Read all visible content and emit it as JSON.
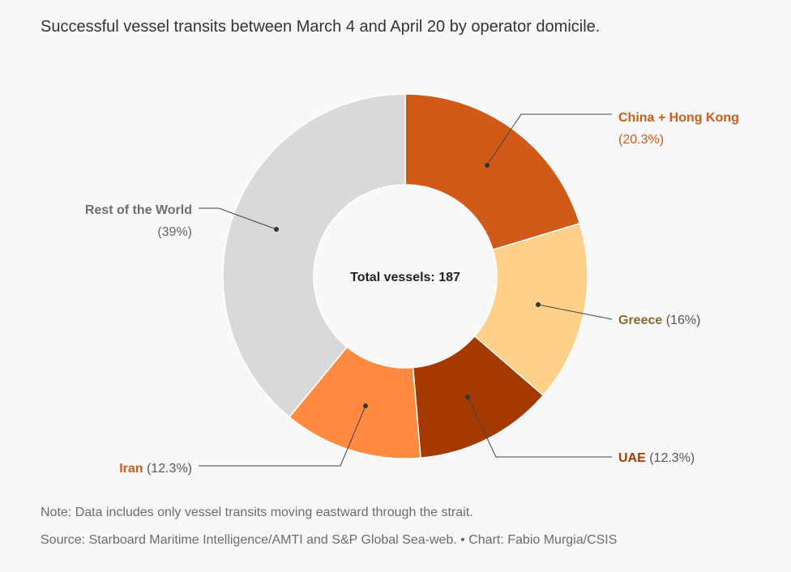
{
  "title": "Successful vessel transits between March 4 and April 20 by operator domicile.",
  "center_label": "Total vessels: 187",
  "notes": {
    "note": "Note: Data includes only vessel transits moving eastward through the strait.",
    "source": "Source: Starboard Maritime Intelligence/AMTI and S&P Global Sea-web. • Chart: Fabio Murgia/CSIS"
  },
  "chart_data": {
    "type": "pie",
    "donut": true,
    "title": "Successful vessel transits between March 4 and April 20 by operator domicile.",
    "total": 187,
    "slices": [
      {
        "name": "China + Hong Kong",
        "label": "(20.3%)",
        "percent": 20.3,
        "color": "#d05a18",
        "label_color": "#d05a18"
      },
      {
        "name": "Greece",
        "label": "(16%)",
        "percent": 16.0,
        "color": "#ffd08a",
        "label_color": "#8a6a2a"
      },
      {
        "name": "UAE",
        "label": "(12.3%)",
        "percent": 12.3,
        "color": "#a43a00",
        "label_color": "#a43a00"
      },
      {
        "name": "Iran",
        "label": "(12.3%)",
        "percent": 12.3,
        "color": "#ff8a42",
        "label_color": "#d05a18"
      },
      {
        "name": "Rest of the World",
        "label": "(39%)",
        "percent": 39.0,
        "color": "#d9d9d9",
        "label_color": "#6e6e6e"
      }
    ]
  }
}
